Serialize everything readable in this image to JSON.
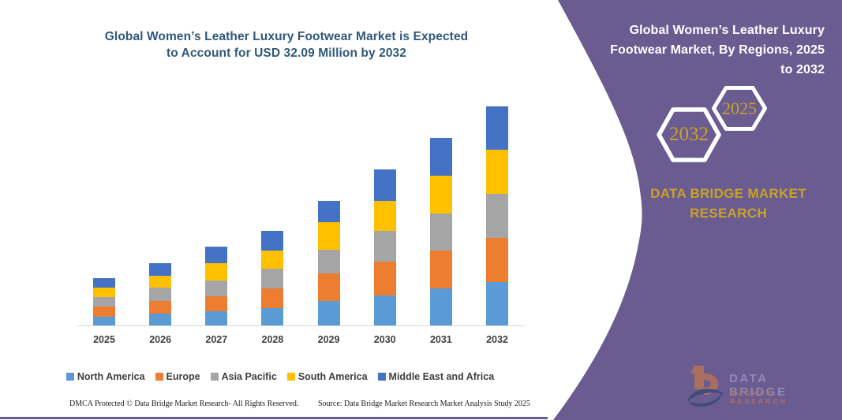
{
  "left_panel": {
    "title_lines": {
      "line1": "Global Women’s Leather Luxury Footwear Market is Expected",
      "line2": "to Account for USD 32.09 Million by 2032"
    },
    "title_color": "#31587a"
  },
  "chart_data": {
    "type": "bar",
    "stacked": true,
    "title": "Global Women’s Leather Luxury Footwear Market is Expected to Account for USD 32.09 Million by 2032",
    "unit": "USD Million",
    "categories": [
      "2025",
      "2026",
      "2027",
      "2028",
      "2029",
      "2030",
      "2031",
      "2032"
    ],
    "series": [
      {
        "name": "North America",
        "color": "#5b9bd5",
        "values": [
          1.32,
          1.7,
          2.11,
          2.57,
          3.61,
          4.39,
          5.46,
          6.31
        ]
      },
      {
        "name": "Europe",
        "color": "#ed7d31",
        "values": [
          1.45,
          1.93,
          2.19,
          2.89,
          3.96,
          4.93,
          5.46,
          6.54
        ]
      },
      {
        "name": "Asia Pacific",
        "color": "#a5a5a5",
        "values": [
          1.35,
          1.96,
          2.31,
          2.88,
          3.46,
          4.54,
          5.51,
          6.46
        ]
      },
      {
        "name": "South America",
        "color": "#ffc000",
        "values": [
          1.46,
          1.73,
          2.5,
          2.69,
          4.04,
          4.39,
          5.46,
          6.43
        ]
      },
      {
        "name": "Middle East and Africa",
        "color": "#4472c4",
        "values": [
          1.31,
          1.8,
          2.39,
          2.81,
          3.15,
          4.62,
          5.58,
          6.35
        ]
      }
    ],
    "totals": [
      6.89,
      9.12,
      11.5,
      13.84,
      18.22,
      22.87,
      27.47,
      32.09
    ],
    "ylim": [
      0,
      32.09
    ],
    "grid": false,
    "y_axis_visible": false,
    "legend_position": "bottom",
    "xlabel": "",
    "ylabel": ""
  },
  "footer": {
    "dmca": "DMCA Protected © Data Bridge Market Research-  All Rights Reserved.",
    "source": "Source: Data Bridge Market Research  Market Analysis Study 2025"
  },
  "right_panel": {
    "title_lines": {
      "line1": "Global Women’s Leather Luxury",
      "line2": "Footwear Market, By Regions, 2025",
      "line3": "to 2032"
    },
    "hexagons": {
      "back_label": "2032",
      "front_label": "2025"
    },
    "brand_lines": {
      "line1": "DATA BRIDGE MARKET",
      "line2": "RESEARCH"
    },
    "logo": {
      "letter": "b",
      "text_top": "DATA BRIDGE",
      "text_bottom": "MARKET RESEARCH"
    },
    "colors": {
      "panel": "#6a5c91",
      "gold": "#c9a227",
      "white": "#ffffff"
    }
  }
}
